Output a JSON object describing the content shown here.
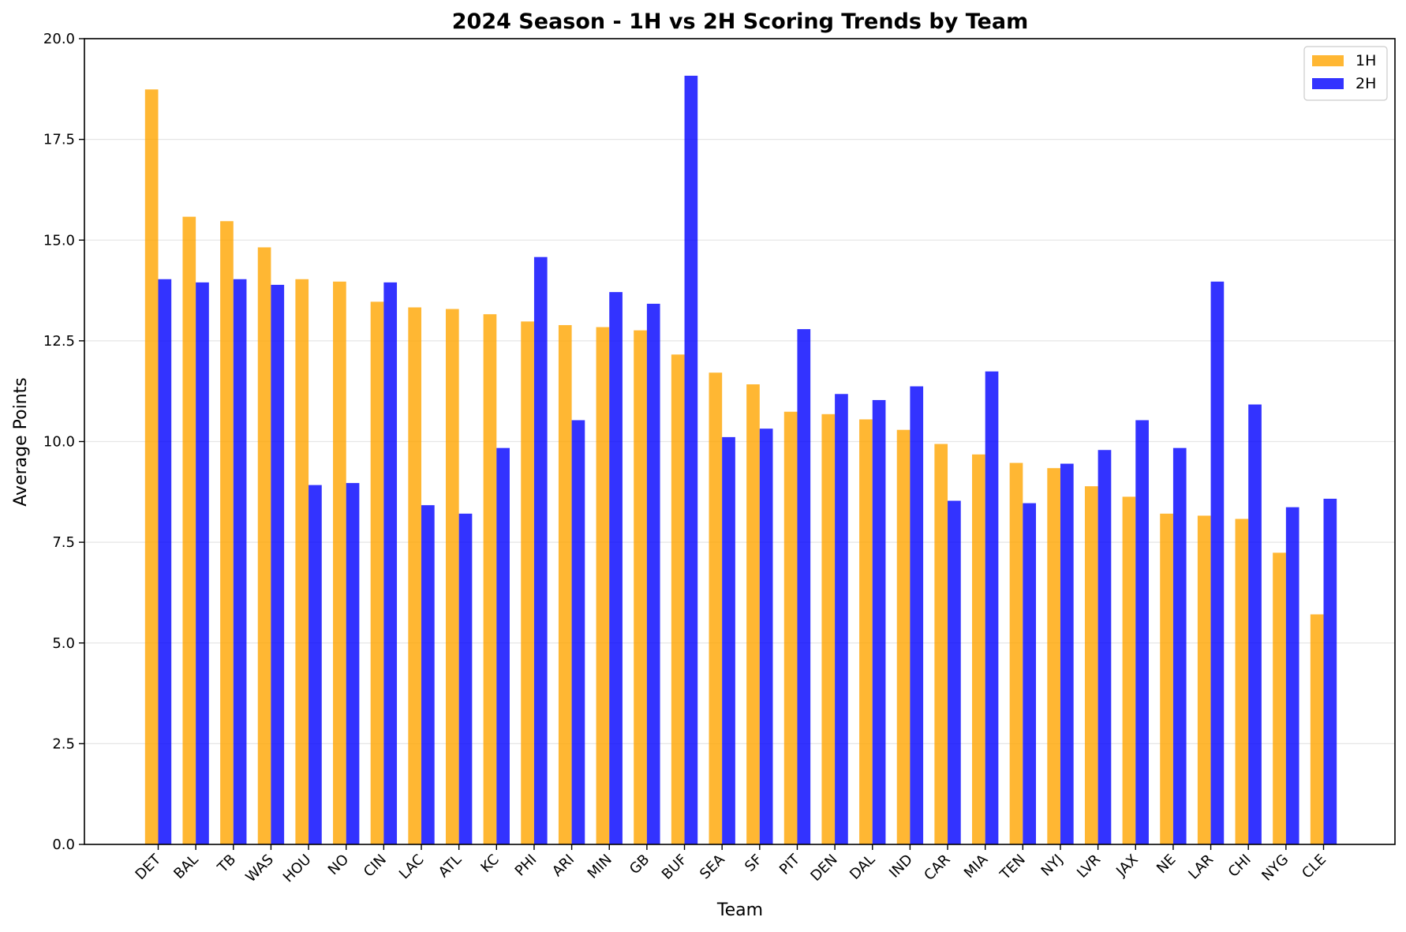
{
  "chart_data": {
    "type": "bar",
    "title": "2024 Season - 1H vs 2H Scoring Trends by Team",
    "xlabel": "Team",
    "ylabel": "Average Points",
    "ylim": [
      0,
      20
    ],
    "yticks": [
      0.0,
      2.5,
      5.0,
      7.5,
      10.0,
      12.5,
      15.0,
      17.5,
      20.0
    ],
    "ytick_labels": [
      "0.0",
      "2.5",
      "5.0",
      "7.5",
      "10.0",
      "12.5",
      "15.0",
      "17.5",
      "20.0"
    ],
    "grid": "y",
    "legend_position": "top-right",
    "categories": [
      "DET",
      "BAL",
      "TB",
      "WAS",
      "HOU",
      "NO",
      "CIN",
      "LAC",
      "ATL",
      "KC",
      "PHI",
      "ARI",
      "MIN",
      "GB",
      "BUF",
      "SEA",
      "SF",
      "PIT",
      "DEN",
      "DAL",
      "IND",
      "CAR",
      "MIA",
      "TEN",
      "NYJ",
      "LVR",
      "JAX",
      "NE",
      "LAR",
      "CHI",
      "NYG",
      "CLE"
    ],
    "series": [
      {
        "name": "1H",
        "color": "#ffa500",
        "values": [
          18.74,
          15.58,
          15.47,
          14.82,
          14.03,
          13.97,
          13.47,
          13.33,
          13.29,
          13.16,
          12.98,
          12.89,
          12.84,
          12.76,
          12.16,
          11.71,
          11.42,
          10.74,
          10.68,
          10.55,
          10.29,
          9.94,
          9.68,
          9.47,
          9.34,
          8.89,
          8.63,
          8.21,
          8.16,
          8.08,
          7.24,
          5.71
        ]
      },
      {
        "name": "2H",
        "color": "#0000ff",
        "values": [
          14.03,
          13.95,
          14.03,
          13.89,
          8.92,
          8.97,
          13.95,
          8.42,
          8.21,
          9.84,
          14.58,
          10.53,
          13.71,
          13.42,
          19.08,
          10.11,
          10.32,
          12.79,
          11.18,
          11.03,
          11.37,
          8.53,
          11.74,
          8.47,
          9.45,
          9.79,
          10.53,
          9.84,
          13.97,
          10.92,
          8.37,
          8.58
        ]
      }
    ]
  }
}
